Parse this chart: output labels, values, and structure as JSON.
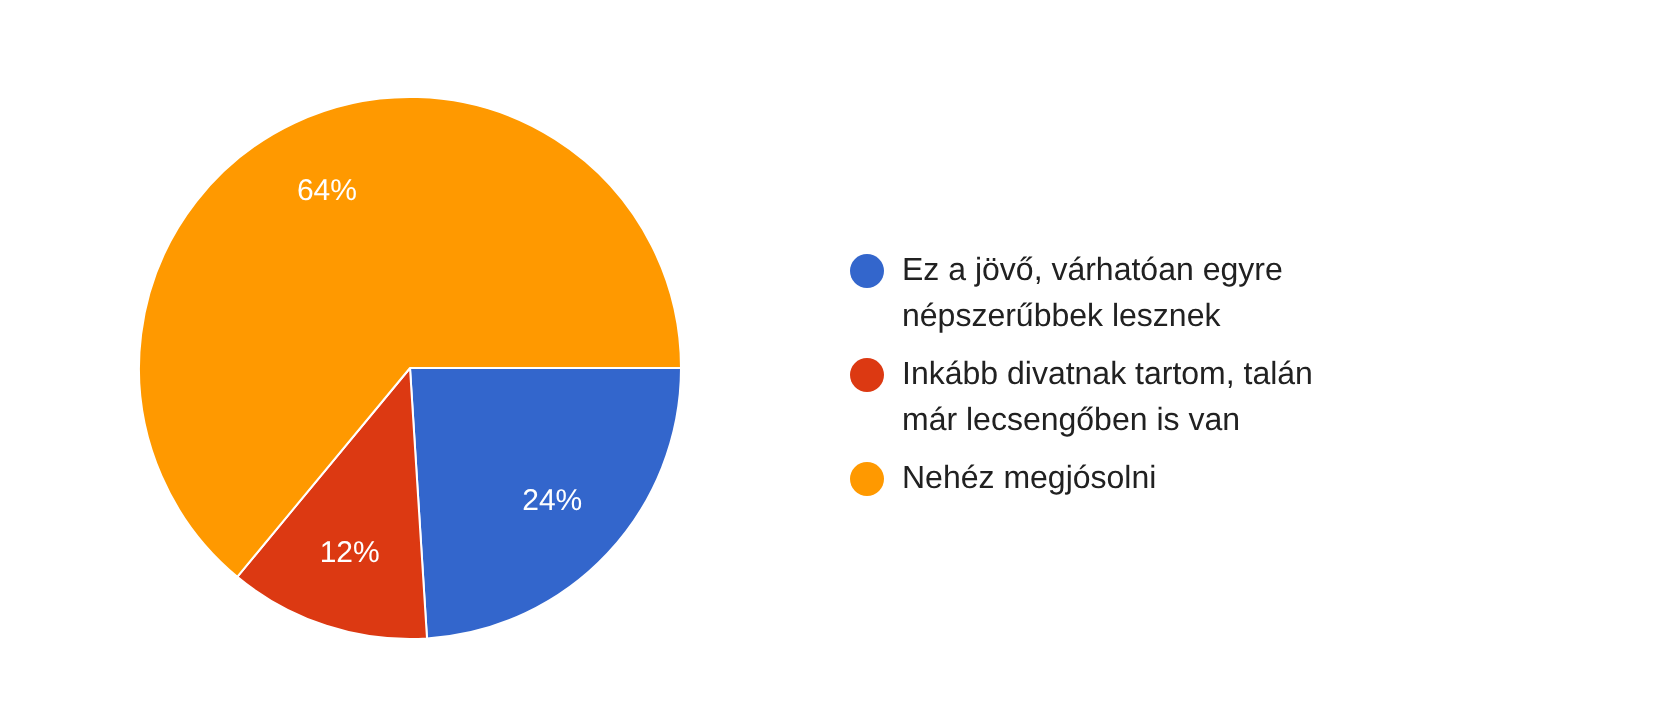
{
  "chart_data": {
    "type": "pie",
    "categories": [
      "Ez a jövő, várhatóan egyre népszerűbbek lesznek",
      "Inkább divatnak tartom, talán már lecsengőben is van",
      "Nehéz megjósolni"
    ],
    "values": [
      24,
      12,
      64
    ],
    "colors": [
      "#3366cc",
      "#dc3912",
      "#ff9900"
    ],
    "value_labels": [
      "24%",
      "12%",
      "64%"
    ],
    "legend": "right"
  }
}
